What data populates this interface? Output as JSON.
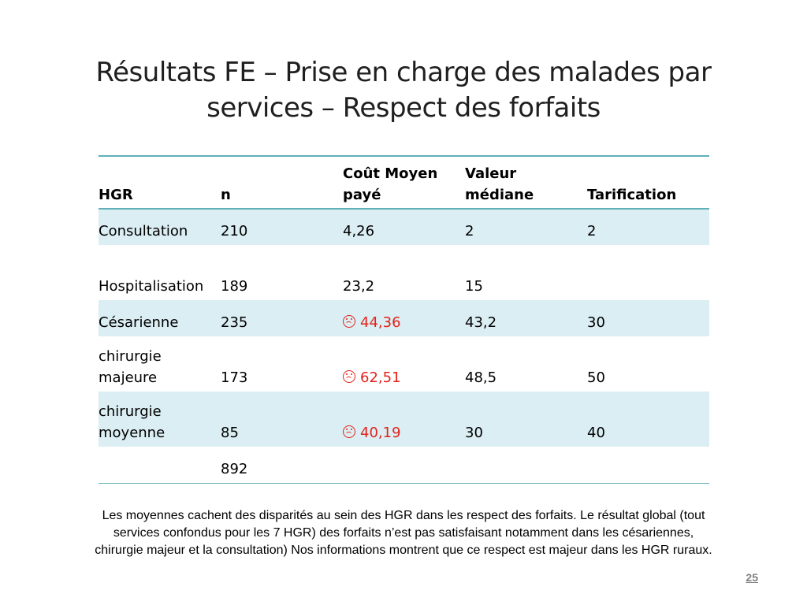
{
  "slide": {
    "title": "Résultats FE – Prise en charge des malades par services – Respect des forfaits",
    "note": "Les moyennes cachent des disparités au sein des HGR dans les respect des forfaits. Le résultat global (tout services confondus pour les 7 HGR) des forfaits n’est pas satisfaisant notamment dans les césariennes, chirurgie majeur et la consultation) Nos informations montrent que ce respect est majeur dans les HGR ruraux.",
    "page_number": "25"
  },
  "table": {
    "headers": [
      "HGR",
      "n",
      "Coût Moyen payé",
      "Valeur médiane",
      "Tarification"
    ],
    "rows": [
      {
        "service": "Consultation",
        "n": "210",
        "cout": "4,26",
        "mediane": "2",
        "tarif": "2",
        "alert": false
      },
      {
        "service": "Hospitalisation",
        "n": "189",
        "cout": "23,2",
        "mediane": "15",
        "tarif": "",
        "alert": false
      },
      {
        "service": "Césarienne",
        "n": "235",
        "cout": "44,36",
        "mediane": "43,2",
        "tarif": "30",
        "alert": true
      },
      {
        "service": "chirurgie majeure",
        "n": "173",
        "cout": "62,51",
        "mediane": "48,5",
        "tarif": "50",
        "alert": true
      },
      {
        "service": "chirurgie moyenne",
        "n": "85",
        "cout": "40,19",
        "mediane": "30",
        "tarif": "40",
        "alert": true
      },
      {
        "service": "",
        "n": "892",
        "cout": "",
        "mediane": "",
        "tarif": "",
        "alert": false
      }
    ],
    "alert_icon": "frown-icon",
    "colors": {
      "alert": "#e3221b",
      "shade": "#dbeef3",
      "rule": "#5fb0b8"
    }
  }
}
